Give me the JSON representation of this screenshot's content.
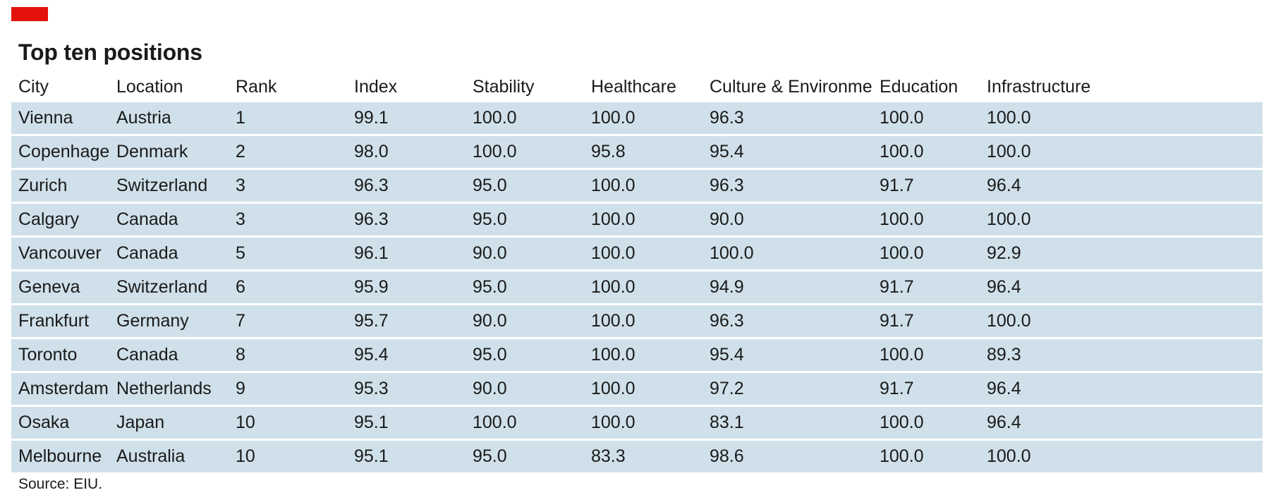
{
  "colors": {
    "accent": "#e3120b",
    "row_background": "#cfe0ea",
    "separator": "#ffffff",
    "text": "#1a1a1a"
  },
  "chart_data": {
    "type": "table",
    "title": "Top ten positions",
    "columns": [
      "City",
      "Location",
      "Rank",
      "Index",
      "Stability",
      "Healthcare",
      "Culture & Environment",
      "Education",
      "Infrastructure"
    ],
    "rows": [
      [
        "Vienna",
        "Austria",
        "1",
        "99.1",
        "100.0",
        "100.0",
        "96.3",
        "100.0",
        "100.0"
      ],
      [
        "Copenhagen",
        "Denmark",
        "2",
        "98.0",
        "100.0",
        "95.8",
        "95.4",
        "100.0",
        "100.0"
      ],
      [
        "Zurich",
        "Switzerland",
        "3",
        "96.3",
        "95.0",
        "100.0",
        "96.3",
        "91.7",
        "96.4"
      ],
      [
        "Calgary",
        "Canada",
        "3",
        "96.3",
        "95.0",
        "100.0",
        "90.0",
        "100.0",
        "100.0"
      ],
      [
        "Vancouver",
        "Canada",
        "5",
        "96.1",
        "90.0",
        "100.0",
        "100.0",
        "100.0",
        "92.9"
      ],
      [
        "Geneva",
        "Switzerland",
        "6",
        "95.9",
        "95.0",
        "100.0",
        "94.9",
        "91.7",
        "96.4"
      ],
      [
        "Frankfurt",
        "Germany",
        "7",
        "95.7",
        "90.0",
        "100.0",
        "96.3",
        "91.7",
        "100.0"
      ],
      [
        "Toronto",
        "Canada",
        "8",
        "95.4",
        "95.0",
        "100.0",
        "95.4",
        "100.0",
        "89.3"
      ],
      [
        "Amsterdam",
        "Netherlands",
        "9",
        "95.3",
        "90.0",
        "100.0",
        "97.2",
        "91.7",
        "96.4"
      ],
      [
        "Osaka",
        "Japan",
        "10",
        "95.1",
        "100.0",
        "100.0",
        "83.1",
        "100.0",
        "96.4"
      ],
      [
        "Melbourne",
        "Australia",
        "10",
        "95.1",
        "95.0",
        "83.3",
        "98.6",
        "100.0",
        "100.0"
      ]
    ],
    "source": "Source: EIU."
  }
}
